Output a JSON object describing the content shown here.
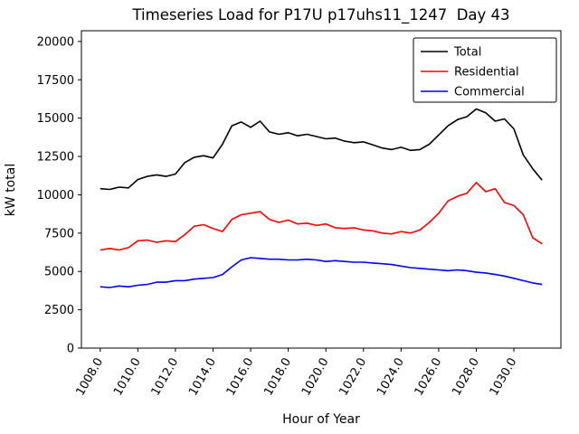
{
  "chart_data": {
    "type": "line",
    "title": "Timeseries Load for P17U p17uhs11_1247  Day 43",
    "xlabel": "Hour of Year",
    "ylabel": "kW total",
    "grid": false,
    "legend_position": "upper right",
    "axis_color": "#000000",
    "background_color": "#ffffff",
    "xlim": [
      1007.0,
      1032.5
    ],
    "ylim": [
      0,
      20700
    ],
    "yticks": [
      0,
      2500,
      5000,
      7500,
      10000,
      12500,
      15000,
      17500,
      20000
    ],
    "xticks": [
      "1008.0",
      "1010.0",
      "1012.0",
      "1014.0",
      "1016.0",
      "1018.0",
      "1020.0",
      "1022.0",
      "1024.0",
      "1026.0",
      "1028.0",
      "1030.0"
    ],
    "x": [
      1008.0,
      1008.5,
      1009.0,
      1009.5,
      1010.0,
      1010.5,
      1011.0,
      1011.5,
      1012.0,
      1012.5,
      1013.0,
      1013.5,
      1014.0,
      1014.5,
      1015.0,
      1015.5,
      1016.0,
      1016.5,
      1017.0,
      1017.5,
      1018.0,
      1018.5,
      1019.0,
      1019.5,
      1020.0,
      1020.5,
      1021.0,
      1021.5,
      1022.0,
      1022.5,
      1023.0,
      1023.5,
      1024.0,
      1024.5,
      1025.0,
      1025.5,
      1026.0,
      1026.5,
      1027.0,
      1027.5,
      1028.0,
      1028.5,
      1029.0,
      1029.5,
      1030.0,
      1030.5,
      1031.0,
      1031.5
    ],
    "series": [
      {
        "name": "Total",
        "color": "#000000",
        "values": [
          10400,
          10350,
          10500,
          10450,
          11000,
          11200,
          11300,
          11200,
          11350,
          12100,
          12450,
          12550,
          12400,
          13300,
          14500,
          14750,
          14400,
          14800,
          14100,
          13950,
          14050,
          13850,
          13950,
          13800,
          13650,
          13700,
          13500,
          13400,
          13450,
          13250,
          13050,
          12950,
          13100,
          12900,
          12950,
          13300,
          13900,
          14500,
          14900,
          15100,
          15600,
          15350,
          14800,
          14950,
          14300,
          12600,
          11700,
          10950
        ]
      },
      {
        "name": "Residential",
        "color": "#ff0000",
        "values": [
          6400,
          6500,
          6400,
          6550,
          7000,
          7050,
          6900,
          7000,
          6950,
          7400,
          7950,
          8050,
          7800,
          7600,
          8400,
          8700,
          8800,
          8900,
          8400,
          8200,
          8350,
          8100,
          8150,
          8000,
          8100,
          7850,
          7800,
          7850,
          7700,
          7650,
          7500,
          7450,
          7600,
          7500,
          7700,
          8200,
          8800,
          9600,
          9900,
          10100,
          10800,
          10200,
          10400,
          9500,
          9300,
          8700,
          7200,
          6800
        ]
      },
      {
        "name": "Commercial",
        "color": "#0000ff",
        "values": [
          4000,
          3950,
          4050,
          4000,
          4100,
          4150,
          4300,
          4300,
          4400,
          4400,
          4500,
          4550,
          4600,
          4800,
          5300,
          5750,
          5900,
          5850,
          5800,
          5800,
          5750,
          5750,
          5800,
          5750,
          5650,
          5700,
          5650,
          5600,
          5600,
          5550,
          5500,
          5450,
          5350,
          5250,
          5200,
          5150,
          5100,
          5050,
          5100,
          5050,
          4950,
          4900,
          4800,
          4700,
          4550,
          4400,
          4250,
          4150
        ]
      }
    ]
  }
}
